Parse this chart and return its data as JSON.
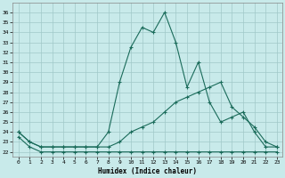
{
  "xlabel": "Humidex (Indice chaleur)",
  "background_color": "#c8eaea",
  "grid_color": "#a0c8c8",
  "line_color": "#1a6b5a",
  "x_ticks": [
    0,
    1,
    2,
    3,
    4,
    5,
    6,
    7,
    8,
    9,
    10,
    11,
    12,
    13,
    14,
    15,
    16,
    17,
    18,
    19,
    20,
    21,
    22,
    23
  ],
  "y_ticks": [
    22,
    23,
    24,
    25,
    26,
    27,
    28,
    29,
    30,
    31,
    32,
    33,
    34,
    35,
    36
  ],
  "ylim": [
    21.5,
    37.0
  ],
  "xlim": [
    -0.5,
    23.5
  ],
  "series": [
    {
      "x": [
        0,
        1,
        2,
        3,
        4,
        5,
        6,
        7,
        8,
        9,
        10,
        11,
        12,
        13,
        14,
        15,
        16,
        17,
        18,
        19,
        20,
        21,
        22,
        23
      ],
      "y": [
        23.5,
        22.5,
        22,
        22,
        22,
        22,
        22,
        22,
        22,
        22,
        22,
        22,
        22,
        22,
        22,
        22,
        22,
        22,
        22,
        22,
        22,
        22,
        22,
        22
      ]
    },
    {
      "x": [
        0,
        1,
        2,
        3,
        4,
        5,
        6,
        7,
        8,
        9,
        10,
        11,
        12,
        13,
        14,
        15,
        16,
        17,
        18,
        19,
        20,
        21,
        22,
        23
      ],
      "y": [
        24,
        23,
        22.5,
        22.5,
        22.5,
        22.5,
        22.5,
        22.5,
        22.5,
        23,
        24,
        24.5,
        25,
        26,
        27,
        27.5,
        28,
        28.5,
        29,
        26.5,
        25.5,
        24.5,
        23,
        22.5
      ]
    },
    {
      "x": [
        0,
        1,
        2,
        3,
        4,
        5,
        6,
        7,
        8,
        9,
        10,
        11,
        12,
        13,
        14,
        15,
        16,
        17,
        18,
        19,
        20,
        21,
        22,
        23
      ],
      "y": [
        24,
        23,
        22.5,
        22.5,
        22.5,
        22.5,
        22.5,
        22.5,
        24,
        29,
        32.5,
        34.5,
        34,
        36,
        33,
        28.5,
        31,
        27,
        25,
        25.5,
        26,
        24,
        22.5,
        22.5
      ]
    }
  ]
}
